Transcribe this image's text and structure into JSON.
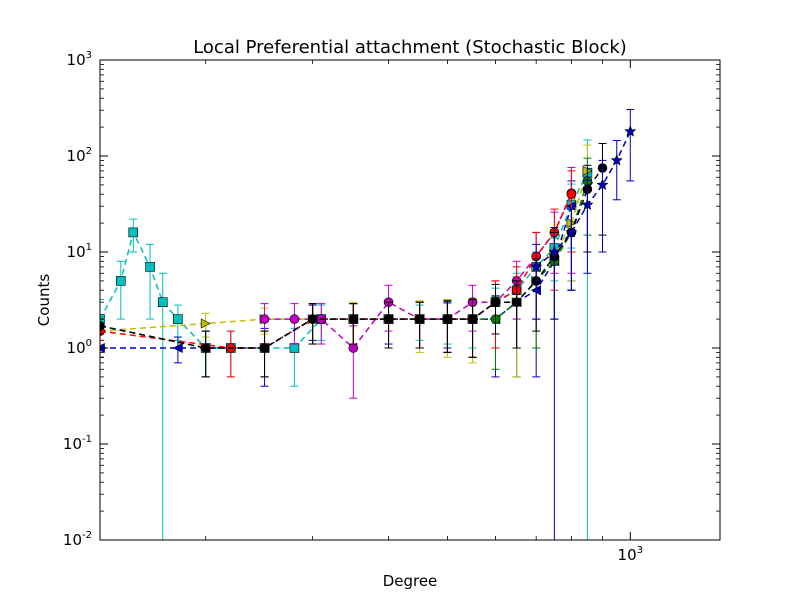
{
  "chart_data": {
    "type": "line",
    "title": "Local Preferential attachment (Stochastic Block)",
    "xlabel": "Degree",
    "ylabel": "Counts",
    "xscale": "log",
    "yscale": "log",
    "xlim": [
      134,
      1405
    ],
    "ylim": [
      0.01,
      1000
    ],
    "grid": false,
    "x_ticks": [
      {
        "base": "10",
        "exp": "3",
        "value": 1000
      }
    ],
    "y_ticks": [
      {
        "base": "10",
        "exp": "-2",
        "value": 0.01
      },
      {
        "base": "10",
        "exp": "-1",
        "value": 0.1
      },
      {
        "base": "10",
        "exp": "0",
        "value": 1
      },
      {
        "base": "10",
        "exp": "1",
        "value": 10
      },
      {
        "base": "10",
        "exp": "2",
        "value": 100
      },
      {
        "base": "10",
        "exp": "3",
        "value": 1000
      }
    ],
    "series": [
      {
        "color": "#00bfbf",
        "marker": "square",
        "x": [
          134,
          145,
          152,
          162,
          170,
          180,
          200,
          220,
          250,
          280,
          310,
          350,
          400,
          450,
          500,
          550,
          600,
          650,
          700,
          750,
          800,
          850
        ],
        "y": [
          2,
          5,
          16,
          7,
          3,
          2,
          1,
          1,
          1,
          1,
          2,
          2,
          2,
          2,
          2,
          2,
          3,
          4,
          7,
          11,
          31,
          67
        ],
        "yerr": [
          1.2,
          3,
          6,
          5,
          3,
          0.8,
          0.5,
          0.5,
          0.5,
          0.6,
          0.8,
          0.9,
          0.9,
          0.8,
          0.9,
          1,
          1.2,
          2,
          3,
          6,
          20,
          80
        ]
      },
      {
        "color": "#0000bf",
        "marker": "triangle-left",
        "x": [
          134,
          180,
          200,
          250,
          300,
          350,
          400,
          450,
          500,
          550,
          600,
          650,
          700,
          750,
          800
        ],
        "y": [
          1,
          1,
          1,
          1,
          2,
          2,
          2,
          2,
          2,
          2,
          2,
          3,
          4,
          8,
          30
        ],
        "yerr": [
          0.2,
          0.3,
          0.5,
          0.6,
          0.8,
          0.9,
          0.9,
          1,
          1,
          1.2,
          1.5,
          2.5,
          3.5,
          8,
          25
        ]
      },
      {
        "color": "#bfbf00",
        "marker": "triangle-right",
        "x": [
          134,
          200,
          250,
          300,
          350,
          400,
          450,
          500,
          550,
          600,
          650,
          700,
          750,
          800,
          850
        ],
        "y": [
          1.5,
          1.8,
          2,
          2,
          2,
          2,
          2,
          2,
          2,
          3,
          3,
          5,
          9,
          20,
          70
        ],
        "yerr": [
          0.3,
          0.5,
          0.6,
          0.9,
          1,
          1,
          1.1,
          1.2,
          1.3,
          2,
          2.5,
          4,
          7,
          15,
          60
        ]
      },
      {
        "color": "#bf00bf",
        "marker": "circle",
        "x": [
          250,
          280,
          310,
          350,
          400,
          450,
          500,
          550,
          600,
          650,
          700,
          750,
          800
        ],
        "y": [
          2,
          2,
          2,
          1,
          3,
          2,
          2,
          3,
          3,
          5,
          9,
          16,
          41
        ],
        "yerr": [
          0.9,
          0.9,
          0.9,
          0.7,
          1.5,
          1,
          1.1,
          1.5,
          2,
          3,
          7,
          10,
          35
        ]
      },
      {
        "color": "#008000",
        "marker": "circle",
        "x": [
          134,
          200,
          250,
          300,
          350,
          400,
          450,
          500,
          550,
          600,
          650,
          700,
          750,
          800,
          850
        ],
        "y": [
          1.7,
          1,
          1,
          2,
          2,
          2,
          2,
          2,
          2,
          2,
          3,
          5,
          8,
          16,
          55
        ],
        "yerr": [
          0.3,
          0.5,
          0.5,
          0.9,
          0.9,
          1,
          1,
          1.1,
          1.2,
          1.4,
          2,
          4,
          6,
          12,
          40
        ]
      },
      {
        "color": "#ff0000",
        "marker": "circle",
        "x": [
          134,
          220,
          250,
          300,
          350,
          400,
          450,
          500,
          550,
          600,
          650,
          700,
          750,
          800
        ],
        "y": [
          1.5,
          1,
          1,
          2,
          2,
          2,
          2,
          2,
          2,
          3,
          4,
          9,
          16,
          40
        ],
        "yerr": [
          0.3,
          0.5,
          0.5,
          0.9,
          0.9,
          1,
          1,
          1.1,
          1.2,
          2,
          3,
          7,
          12,
          30
        ]
      },
      {
        "color": "#000000",
        "marker": "circle",
        "x": [
          134,
          200,
          250,
          300,
          350,
          400,
          450,
          500,
          550,
          600,
          650,
          700,
          750,
          800,
          850,
          900
        ],
        "y": [
          1.7,
          1,
          1,
          2,
          2,
          2,
          2,
          2,
          2,
          3,
          3,
          5,
          9,
          16,
          45,
          75
        ],
        "yerr": [
          0.3,
          0.5,
          0.5,
          0.9,
          0.9,
          1,
          1,
          1.1,
          1.2,
          1.6,
          2,
          3.5,
          7,
          12,
          35,
          60
        ]
      },
      {
        "color": "#0000bf",
        "marker": "star",
        "x": [
          700,
          750,
          800,
          850,
          900,
          950,
          1000
        ],
        "y": [
          7,
          10,
          16,
          31,
          50,
          90,
          180
        ],
        "yerr": [
          5,
          8,
          12,
          25,
          40,
          55,
          125
        ]
      }
    ]
  }
}
